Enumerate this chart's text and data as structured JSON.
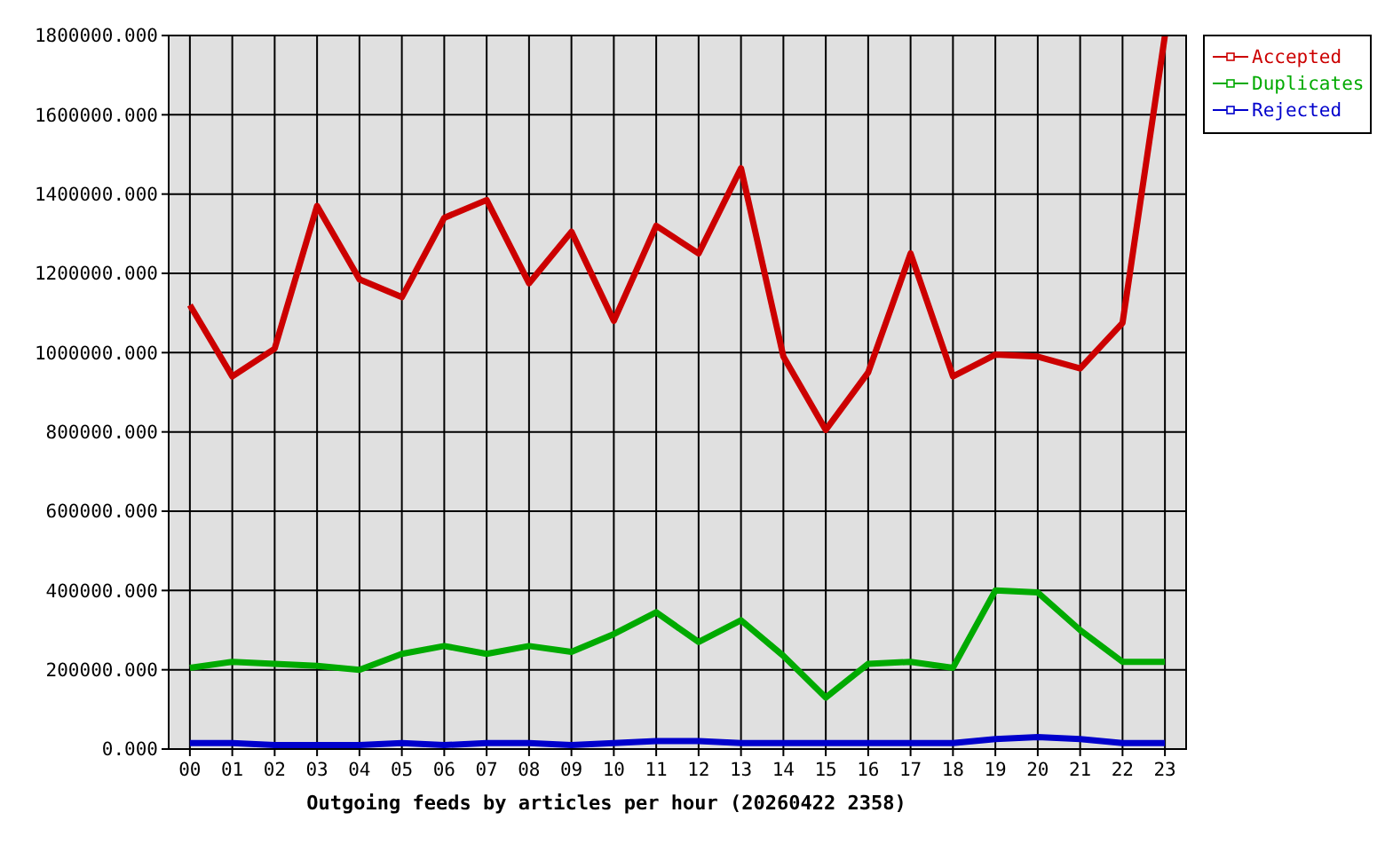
{
  "chart_data": {
    "type": "line",
    "xlabel": "Outgoing feeds by articles per hour (20260422 2358)",
    "categories": [
      "00",
      "01",
      "02",
      "03",
      "04",
      "05",
      "06",
      "07",
      "08",
      "09",
      "10",
      "11",
      "12",
      "13",
      "14",
      "15",
      "16",
      "17",
      "18",
      "19",
      "20",
      "21",
      "22",
      "23"
    ],
    "series": [
      {
        "name": "Accepted",
        "color": "#cc0000",
        "values": [
          1120000,
          940000,
          1010000,
          1370000,
          1185000,
          1140000,
          1340000,
          1385000,
          1175000,
          1305000,
          1080000,
          1320000,
          1250000,
          1465000,
          990000,
          805000,
          950000,
          1250000,
          940000,
          995000,
          990000,
          960000,
          1075000,
          1800000
        ]
      },
      {
        "name": "Duplicates",
        "color": "#00aa00",
        "values": [
          205000,
          220000,
          215000,
          210000,
          200000,
          240000,
          260000,
          240000,
          260000,
          245000,
          290000,
          345000,
          270000,
          325000,
          235000,
          130000,
          215000,
          220000,
          205000,
          400000,
          395000,
          300000,
          220000,
          220000
        ]
      },
      {
        "name": "Rejected",
        "color": "#0000cc",
        "values": [
          15000,
          15000,
          10000,
          10000,
          10000,
          15000,
          10000,
          15000,
          15000,
          10000,
          15000,
          20000,
          20000,
          15000,
          15000,
          15000,
          15000,
          15000,
          15000,
          25000,
          30000,
          25000,
          15000,
          15000
        ]
      }
    ],
    "ylim": [
      0,
      1800000
    ],
    "yticks": [
      {
        "value": 0,
        "label": "0.000"
      },
      {
        "value": 200000,
        "label": "200000.000"
      },
      {
        "value": 400000,
        "label": "400000.000"
      },
      {
        "value": 600000,
        "label": "600000.000"
      },
      {
        "value": 800000,
        "label": "800000.000"
      },
      {
        "value": 1000000,
        "label": "1000000.000"
      },
      {
        "value": 1200000,
        "label": "1200000.000"
      },
      {
        "value": 1400000,
        "label": "1400000.000"
      },
      {
        "value": 1600000,
        "label": "1600000.000"
      },
      {
        "value": 1800000,
        "label": "1800000.000"
      }
    ],
    "grid": true,
    "legend": "top right",
    "marker": "none",
    "line_style": "solid"
  }
}
